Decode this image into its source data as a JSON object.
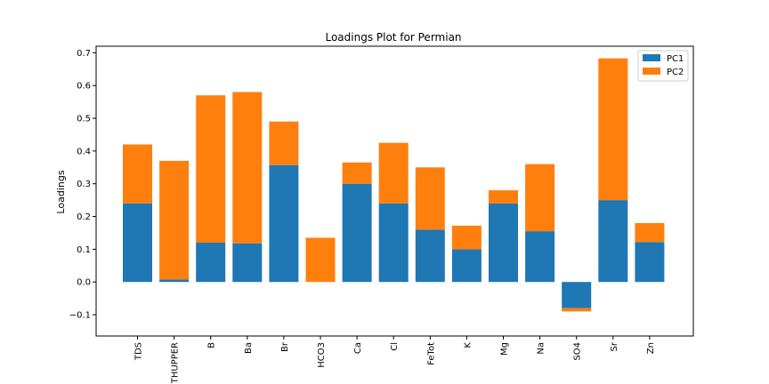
{
  "chart_data": {
    "type": "bar",
    "stacked": true,
    "title": "Loadings Plot for Permian",
    "xlabel": "",
    "ylabel": "Loadings",
    "ylim": [
      -0.165,
      0.72
    ],
    "yticks": [
      -0.1,
      0.0,
      0.1,
      0.2,
      0.3,
      0.4,
      0.5,
      0.6,
      0.7
    ],
    "ytick_labels": [
      "−0.1",
      "0.0",
      "0.1",
      "0.2",
      "0.3",
      "0.4",
      "0.5",
      "0.6",
      "0.7"
    ],
    "categories": [
      "TDS",
      "THUPPER",
      "B",
      "Ba",
      "Br",
      "HCO3",
      "Ca",
      "Cl",
      "FeTot",
      "K",
      "Mg",
      "Na",
      "SO4",
      "Sr",
      "Zn"
    ],
    "series": [
      {
        "name": "PC1",
        "color": "#1f77b4",
        "values": [
          0.24,
          0.008,
          0.12,
          0.118,
          0.357,
          0.0,
          0.3,
          0.24,
          0.16,
          0.1,
          0.24,
          0.155,
          -0.08,
          0.25,
          0.122
        ]
      },
      {
        "name": "PC2",
        "color": "#ff7f0e",
        "values": [
          0.18,
          0.362,
          0.45,
          0.462,
          0.133,
          0.135,
          0.065,
          0.185,
          0.19,
          0.072,
          0.04,
          0.205,
          -0.01,
          0.433,
          0.058
        ]
      }
    ],
    "legend_position": "top-right",
    "grid": false
  }
}
